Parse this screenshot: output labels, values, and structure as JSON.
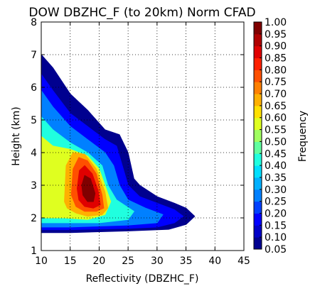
{
  "chart_data": {
    "type": "contour",
    "title": "DOW DBZHC_F (to 20km) Norm CFAD",
    "xlabel": "Reflectivity (DBZHC_F)",
    "ylabel": "Height (km)",
    "xlim": [
      10,
      45
    ],
    "ylim": [
      1,
      8
    ],
    "xticks": [
      "10",
      "15",
      "20",
      "25",
      "30",
      "35",
      "40",
      "45"
    ],
    "yticks": [
      "1",
      "2",
      "3",
      "4",
      "5",
      "6",
      "7",
      "8"
    ],
    "grid": true,
    "colorbar": {
      "label": "Frequency",
      "ticks": [
        "0.05",
        "0.10",
        "0.15",
        "0.20",
        "0.25",
        "0.30",
        "0.35",
        "0.40",
        "0.45",
        "0.50",
        "0.55",
        "0.60",
        "0.65",
        "0.70",
        "0.75",
        "0.80",
        "0.85",
        "0.90",
        "0.95",
        "1.00"
      ],
      "colors": [
        "#00008f",
        "#0000c8",
        "#0000ff",
        "#0040ff",
        "#0080ff",
        "#00b0ff",
        "#00dfff",
        "#20ffdf",
        "#60ff9f",
        "#a0ff60",
        "#dfff20",
        "#ffe000",
        "#ffb000",
        "#ff8000",
        "#ff5000",
        "#ff2000",
        "#e00000",
        "#b00000",
        "#800000"
      ]
    },
    "level_regions": [
      {
        "level": 0.05,
        "points": [
          [
            10,
            1.6
          ],
          [
            10,
            7.0
          ],
          [
            12,
            6.6
          ],
          [
            15,
            5.8
          ],
          [
            18,
            5.3
          ],
          [
            21,
            4.7
          ],
          [
            23.5,
            4.55
          ],
          [
            25,
            4.0
          ],
          [
            26,
            3.2
          ],
          [
            27,
            3.0
          ],
          [
            30,
            2.65
          ],
          [
            33,
            2.45
          ],
          [
            35,
            2.3
          ],
          [
            36.5,
            2.05
          ],
          [
            35,
            1.8
          ],
          [
            32,
            1.65
          ],
          [
            25,
            1.6
          ],
          [
            15,
            1.55
          ],
          [
            10,
            1.55
          ]
        ]
      },
      {
        "level": 0.15,
        "points": [
          [
            10,
            1.7
          ],
          [
            10,
            6.4
          ],
          [
            12,
            5.9
          ],
          [
            15,
            5.2
          ],
          [
            18,
            4.8
          ],
          [
            21,
            4.4
          ],
          [
            23,
            4.2
          ],
          [
            24,
            3.6
          ],
          [
            25,
            3.0
          ],
          [
            27,
            2.65
          ],
          [
            30,
            2.45
          ],
          [
            33,
            2.25
          ],
          [
            34.5,
            2.05
          ],
          [
            33,
            1.85
          ],
          [
            30,
            1.72
          ],
          [
            25,
            1.68
          ],
          [
            15,
            1.64
          ],
          [
            10,
            1.64
          ]
        ]
      },
      {
        "level": 0.25,
        "points": [
          [
            10,
            1.75
          ],
          [
            10,
            5.9
          ],
          [
            12,
            5.4
          ],
          [
            15,
            4.8
          ],
          [
            18,
            4.4
          ],
          [
            21,
            4.0
          ],
          [
            22.5,
            3.6
          ],
          [
            23.5,
            3.0
          ],
          [
            25,
            2.55
          ],
          [
            28,
            2.3
          ],
          [
            31,
            2.1
          ],
          [
            30,
            1.85
          ],
          [
            25,
            1.78
          ],
          [
            15,
            1.72
          ],
          [
            10,
            1.72
          ]
        ]
      },
      {
        "level": 0.4,
        "points": [
          [
            10,
            1.85
          ],
          [
            10,
            5.1
          ],
          [
            12,
            4.7
          ],
          [
            15,
            4.3
          ],
          [
            18,
            4.0
          ],
          [
            20.5,
            3.6
          ],
          [
            21.5,
            3.0
          ],
          [
            23,
            2.55
          ],
          [
            26,
            2.2
          ],
          [
            25,
            1.95
          ],
          [
            20,
            1.85
          ],
          [
            15,
            1.85
          ],
          [
            10,
            1.85
          ]
        ]
      },
      {
        "level": 0.55,
        "points": [
          [
            10,
            2.0
          ],
          [
            10,
            4.5
          ],
          [
            12,
            4.2
          ],
          [
            15,
            4.1
          ],
          [
            18,
            3.9
          ],
          [
            20,
            3.5
          ],
          [
            21,
            3.0
          ],
          [
            22,
            2.5
          ],
          [
            21,
            2.1
          ],
          [
            18,
            1.95
          ],
          [
            14,
            2.0
          ],
          [
            10,
            2.0
          ]
        ]
      },
      {
        "level": 0.65,
        "points": [
          [
            14,
            2.5
          ],
          [
            14.3,
            3.6
          ],
          [
            15.5,
            4.0
          ],
          [
            17.5,
            3.95
          ],
          [
            19.5,
            3.5
          ],
          [
            21,
            2.8
          ],
          [
            21.5,
            2.3
          ],
          [
            20.5,
            2.1
          ],
          [
            18,
            2.05
          ],
          [
            16,
            2.15
          ],
          [
            14.5,
            2.3
          ]
        ]
      },
      {
        "level": 0.75,
        "points": [
          [
            15.2,
            2.7
          ],
          [
            15.5,
            3.5
          ],
          [
            16.5,
            3.85
          ],
          [
            18,
            3.75
          ],
          [
            19.5,
            3.35
          ],
          [
            20.5,
            2.7
          ],
          [
            20.8,
            2.3
          ],
          [
            19.5,
            2.2
          ],
          [
            17.5,
            2.2
          ],
          [
            16,
            2.35
          ]
        ]
      },
      {
        "level": 0.85,
        "points": [
          [
            16.2,
            2.9
          ],
          [
            16.6,
            3.45
          ],
          [
            17.5,
            3.6
          ],
          [
            18.8,
            3.35
          ],
          [
            19.8,
            2.85
          ],
          [
            20.2,
            2.4
          ],
          [
            19,
            2.3
          ],
          [
            17.5,
            2.35
          ],
          [
            16.5,
            2.55
          ]
        ]
      },
      {
        "level": 0.95,
        "points": [
          [
            17,
            3.0
          ],
          [
            17.5,
            3.3
          ],
          [
            18.5,
            3.2
          ],
          [
            19.3,
            2.75
          ],
          [
            19,
            2.5
          ],
          [
            18,
            2.5
          ],
          [
            17.2,
            2.7
          ]
        ]
      },
      {
        "level": 1.0,
        "points": [
          [
            17.8,
            2.95
          ],
          [
            18.4,
            3.05
          ],
          [
            19,
            2.8
          ],
          [
            18.7,
            2.65
          ],
          [
            18,
            2.7
          ]
        ]
      }
    ]
  }
}
